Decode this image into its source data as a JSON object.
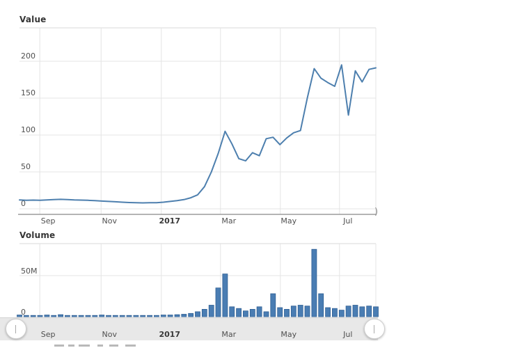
{
  "page": {
    "background": "#ffffff"
  },
  "chart_data": [
    {
      "type": "line",
      "title": "Value",
      "xlabel": "",
      "ylabel": "",
      "ylim": [
        0,
        245
      ],
      "grid": true,
      "legend": "none",
      "line_color": "#4d7fae",
      "y_ticks": [
        {
          "value": 0,
          "label": "0"
        },
        {
          "value": 50,
          "label": "50"
        },
        {
          "value": 100,
          "label": "100"
        },
        {
          "value": 150,
          "label": "150"
        },
        {
          "value": 200,
          "label": "200"
        }
      ],
      "x_ticks": [
        {
          "label": "Sep",
          "pos": 0.057,
          "bold": false
        },
        {
          "label": "Nov",
          "pos": 0.229,
          "bold": false
        },
        {
          "label": "2017",
          "pos": 0.398,
          "bold": true
        },
        {
          "label": "Mar",
          "pos": 0.564,
          "bold": false
        },
        {
          "label": "May",
          "pos": 0.732,
          "bold": false
        },
        {
          "label": "Jul",
          "pos": 0.898,
          "bold": false
        }
      ],
      "values": [
        12,
        11.5,
        11.8,
        11.5,
        12,
        12.5,
        12.8,
        12.5,
        12,
        11.8,
        11.5,
        11,
        10.5,
        10,
        9.5,
        9,
        8.5,
        8.2,
        8,
        8.2,
        8.3,
        9,
        10,
        11,
        12.5,
        15,
        19,
        30,
        50,
        75,
        105,
        88,
        68,
        65,
        76,
        72,
        95,
        97,
        87,
        96,
        103,
        106,
        150,
        190,
        177,
        171,
        166,
        195,
        127,
        187,
        172,
        189,
        191
      ]
    },
    {
      "type": "bar",
      "title": "Volume",
      "xlabel": "",
      "ylabel": "",
      "ylim_millions": [
        0,
        89
      ],
      "grid": true,
      "bar_color": "#4a7db3",
      "bar_edge_color": "#2f5f93",
      "y_ticks": [
        {
          "value": 50,
          "label": "50M"
        },
        {
          "value": 0,
          "label": "0"
        }
      ],
      "values_millions": [
        2,
        1.5,
        1.5,
        1.5,
        2,
        1.5,
        2.5,
        1.5,
        1.5,
        1.5,
        1.5,
        1.5,
        2,
        1.5,
        1.5,
        1.5,
        1.5,
        1.5,
        1.5,
        1.5,
        1.5,
        2,
        2,
        2.5,
        3,
        4,
        6,
        9,
        14,
        35,
        52,
        12,
        10,
        7,
        9,
        12,
        6,
        28,
        11,
        9,
        13,
        14,
        13,
        82,
        28,
        11,
        10,
        8,
        13,
        14,
        12,
        13,
        12
      ]
    }
  ],
  "scrollbar": {
    "labels": [
      "Sep",
      "Nov",
      "2017",
      "Mar",
      "May",
      "Jul"
    ]
  },
  "axis_end_artifact": ")",
  "colors": {
    "gridline": "#e4e4e4",
    "plot_border": "#dadada",
    "axis_line": "#9b9b9b",
    "track": "#e8e8e8",
    "handle_border": "#cfcfcf"
  }
}
